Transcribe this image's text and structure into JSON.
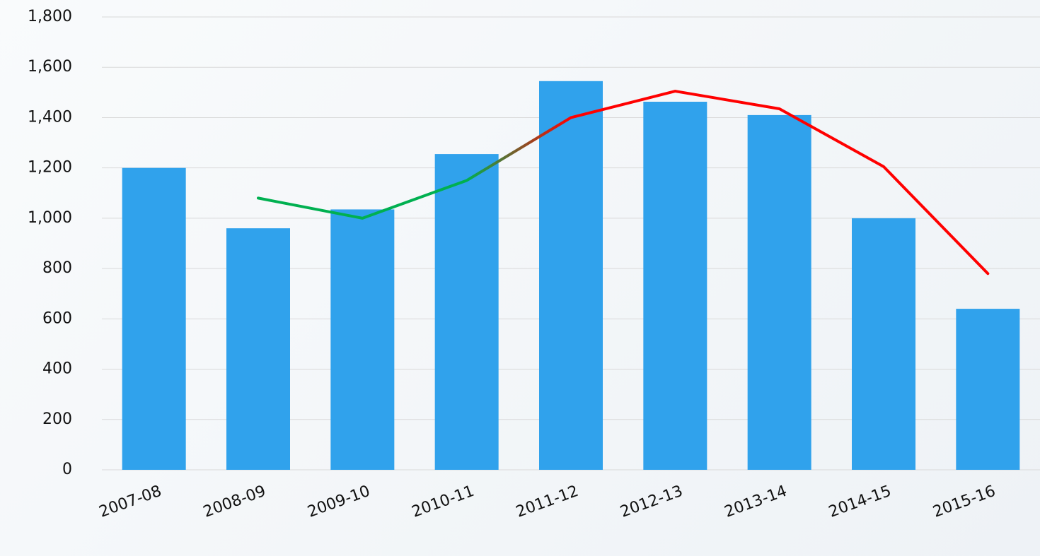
{
  "chart_data": {
    "type": "bar",
    "categories": [
      "2007-08",
      "2008-09",
      "2009-10",
      "2010-11",
      "2011-12",
      "2012-13",
      "2013-14",
      "2014-15",
      "2015-16"
    ],
    "series": [
      {
        "type": "bar",
        "color": "#30a2ec",
        "values": [
          1200,
          960,
          1035,
          1255,
          1545,
          1463,
          1410,
          1000,
          640
        ]
      },
      {
        "type": "line",
        "values": [
          null,
          1080,
          1000,
          1150,
          1400,
          1505,
          1435,
          1205,
          780
        ],
        "point_colors": [
          null,
          "#00b050",
          "#00b050",
          "#00b050",
          "#ff0000",
          "#ff0000",
          "#ff0000",
          "#ff0000",
          "#ff0000"
        ]
      }
    ],
    "ylim": [
      0,
      1800
    ],
    "yticks": [
      0,
      200,
      400,
      600,
      800,
      {
        "value": 1000,
        "label": "1,000"
      },
      {
        "value": 1200,
        "label": "1,200"
      },
      {
        "value": 1400,
        "label": "1,400"
      },
      {
        "value": 1600,
        "label": "1,600"
      },
      {
        "value": 1800,
        "label": "1,800"
      }
    ],
    "grid": true
  }
}
